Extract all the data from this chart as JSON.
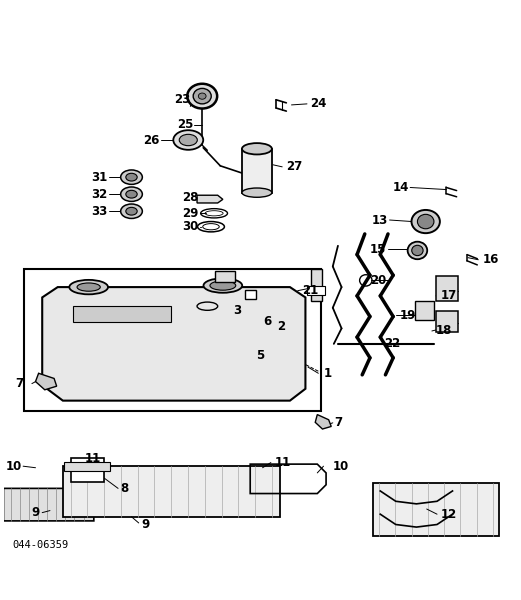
{
  "title": "",
  "bg_color": "#ffffff",
  "line_color": "#000000",
  "fig_width": 5.21,
  "fig_height": 6.0,
  "dpi": 100,
  "footer_text": "044-06359"
}
